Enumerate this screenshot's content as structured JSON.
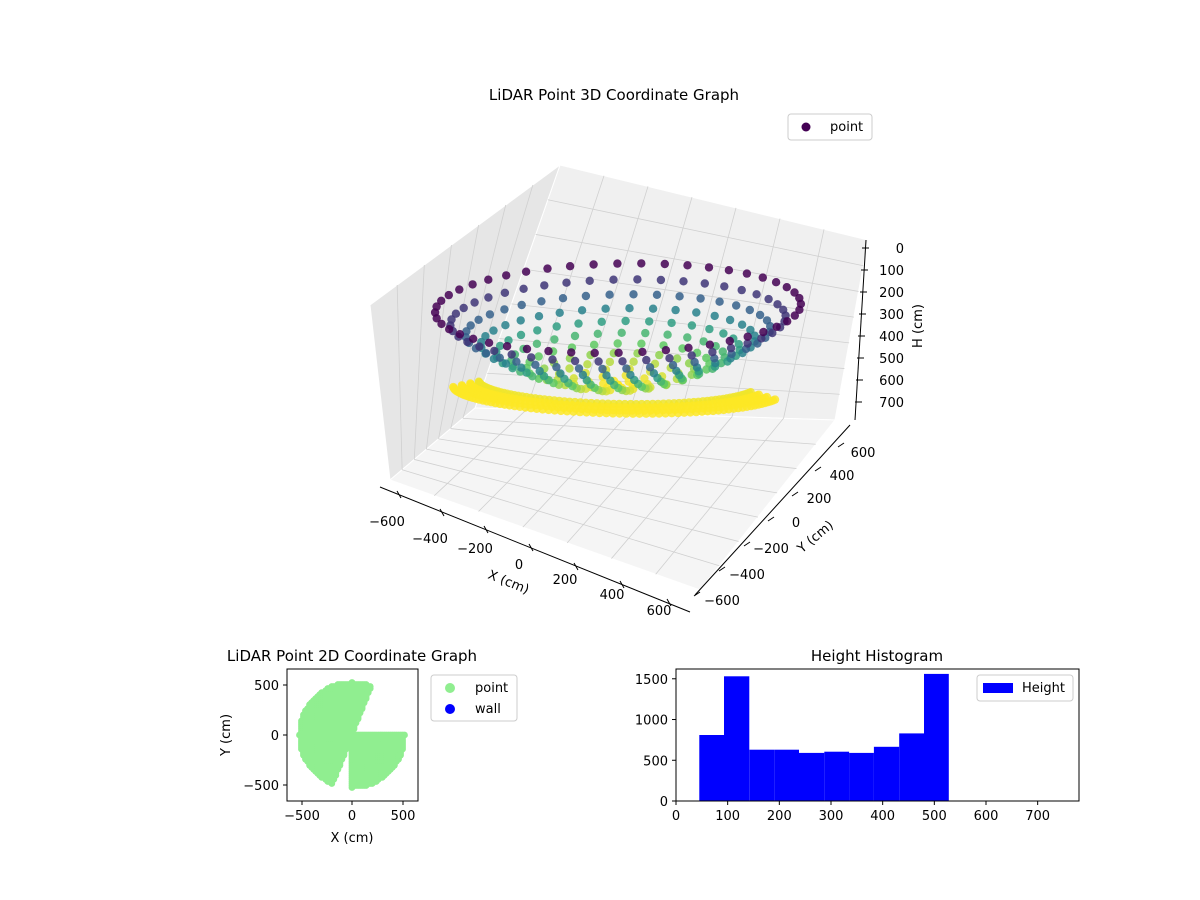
{
  "chart_data": [
    {
      "type": "scatter",
      "projection": "3d",
      "title": "LiDAR Point 3D Coordinate Graph",
      "xlabel": "X (cm)",
      "ylabel": "Y (cm)",
      "zlabel": "H (cm)",
      "xlim": [
        -650,
        650
      ],
      "ylim": [
        -650,
        650
      ],
      "zlim": [
        760,
        0
      ],
      "z_inverted": true,
      "x_ticks": [
        "−600",
        "−400",
        "−200",
        "0",
        "200",
        "400",
        "600"
      ],
      "y_ticks": [
        "−600",
        "−400",
        "−200",
        "0",
        "200",
        "400",
        "600"
      ],
      "z_ticks": [
        "0",
        "100",
        "200",
        "300",
        "400",
        "500",
        "600",
        "700"
      ],
      "colormap": "viridis",
      "grid": true,
      "legend": {
        "entries": [
          {
            "label": "point",
            "color": "#440154"
          }
        ],
        "position": "upper-right"
      },
      "series": [
        {
          "name": "point",
          "shape": "bowl",
          "radius_cm": 520,
          "depth_range_cm": [
            50,
            530
          ]
        }
      ]
    },
    {
      "type": "scatter",
      "title": "LiDAR Point 2D Coordinate Graph",
      "xlabel": "X (cm)",
      "ylabel": "Y (cm)",
      "xlim": [
        -650,
        650
      ],
      "ylim": [
        -650,
        650
      ],
      "x_ticks": [
        "−500",
        "0",
        "500"
      ],
      "y_ticks": [
        "500",
        "0",
        "−500"
      ],
      "grid": false,
      "legend": {
        "position": "outside-right",
        "entries": [
          {
            "label": "point",
            "color": "#90ee90"
          },
          {
            "label": "wall",
            "color": "#0000ff"
          }
        ]
      },
      "series": [
        {
          "name": "point",
          "color": "#90ee90",
          "region": "two quarter-disc lobes plus filled sector, radius ~520"
        },
        {
          "name": "wall",
          "color": "#0000ff",
          "values": []
        }
      ]
    },
    {
      "type": "bar",
      "subtype": "histogram",
      "title": "Height Histogram",
      "xlim": [
        0,
        780
      ],
      "ylim": [
        0,
        1620
      ],
      "x_ticks": [
        "0",
        "100",
        "200",
        "300",
        "400",
        "500",
        "600",
        "700"
      ],
      "y_ticks": [
        "0",
        "500",
        "1000",
        "1500"
      ],
      "color": "#0000ff",
      "legend": {
        "entries": [
          {
            "label": "Height",
            "color": "#0000ff"
          }
        ],
        "position": "upper-right"
      },
      "bin_edges": [
        45,
        93,
        142,
        190,
        238,
        287,
        335,
        383,
        432,
        480,
        528
      ],
      "values": [
        810,
        1530,
        630,
        630,
        590,
        605,
        590,
        665,
        830,
        1560
      ]
    }
  ]
}
